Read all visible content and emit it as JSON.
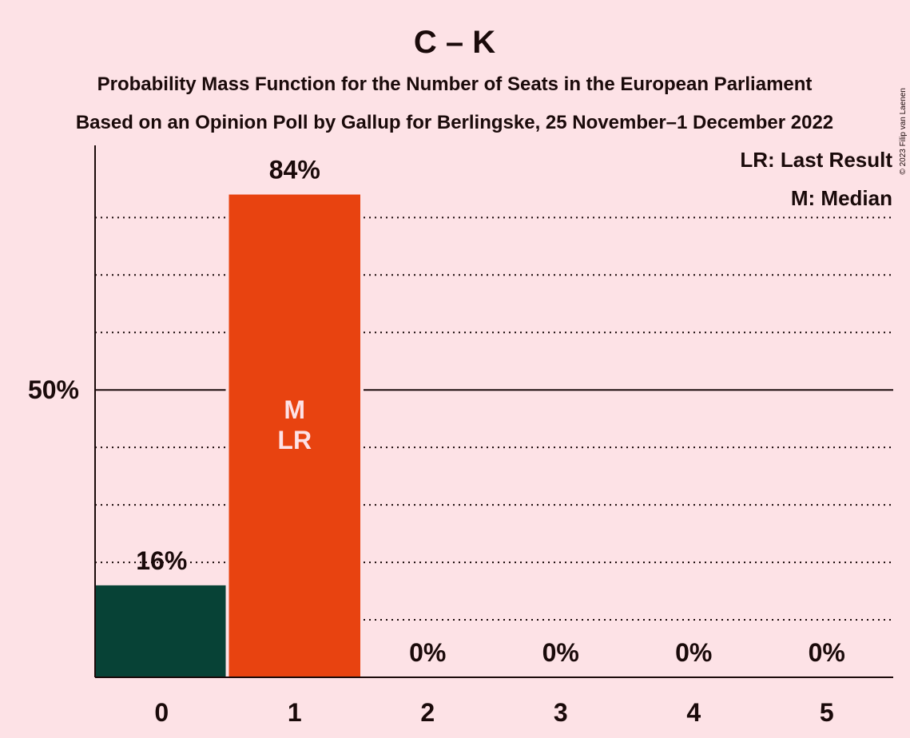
{
  "chart_data": {
    "type": "bar",
    "title": "C – K",
    "subtitle_lines": [
      "Probability Mass Function for the Number of Seats in the European Parliament",
      "Based on an Opinion Poll by Gallup for Berlingske, 25 November–1 December 2022"
    ],
    "categories": [
      "0",
      "1",
      "2",
      "3",
      "4",
      "5"
    ],
    "values": [
      16,
      84,
      0,
      0,
      0,
      0
    ],
    "value_labels": [
      "16%",
      "84%",
      "0%",
      "0%",
      "0%",
      "0%"
    ],
    "ylim": [
      0,
      92
    ],
    "ytick_labels": [
      {
        "value": 50,
        "label": "50%"
      }
    ],
    "dotted_gridlines": [
      10,
      20,
      30,
      40,
      60,
      70,
      80
    ],
    "bar_colors": [
      "#074236",
      "#e84310",
      "#e84310",
      "#e84310",
      "#e84310",
      "#e84310"
    ],
    "bar_annotations": {
      "1": [
        "M",
        "LR"
      ]
    },
    "legend": {
      "placement": "top-right",
      "items": [
        "LR: Last Result",
        "M: Median"
      ]
    },
    "grid": true,
    "copyright": "© 2023 Filip van Laenen"
  },
  "colors": {
    "background": "#fde2e6",
    "text": "#1a0a0a",
    "annotation_text": "#fde2e6"
  }
}
